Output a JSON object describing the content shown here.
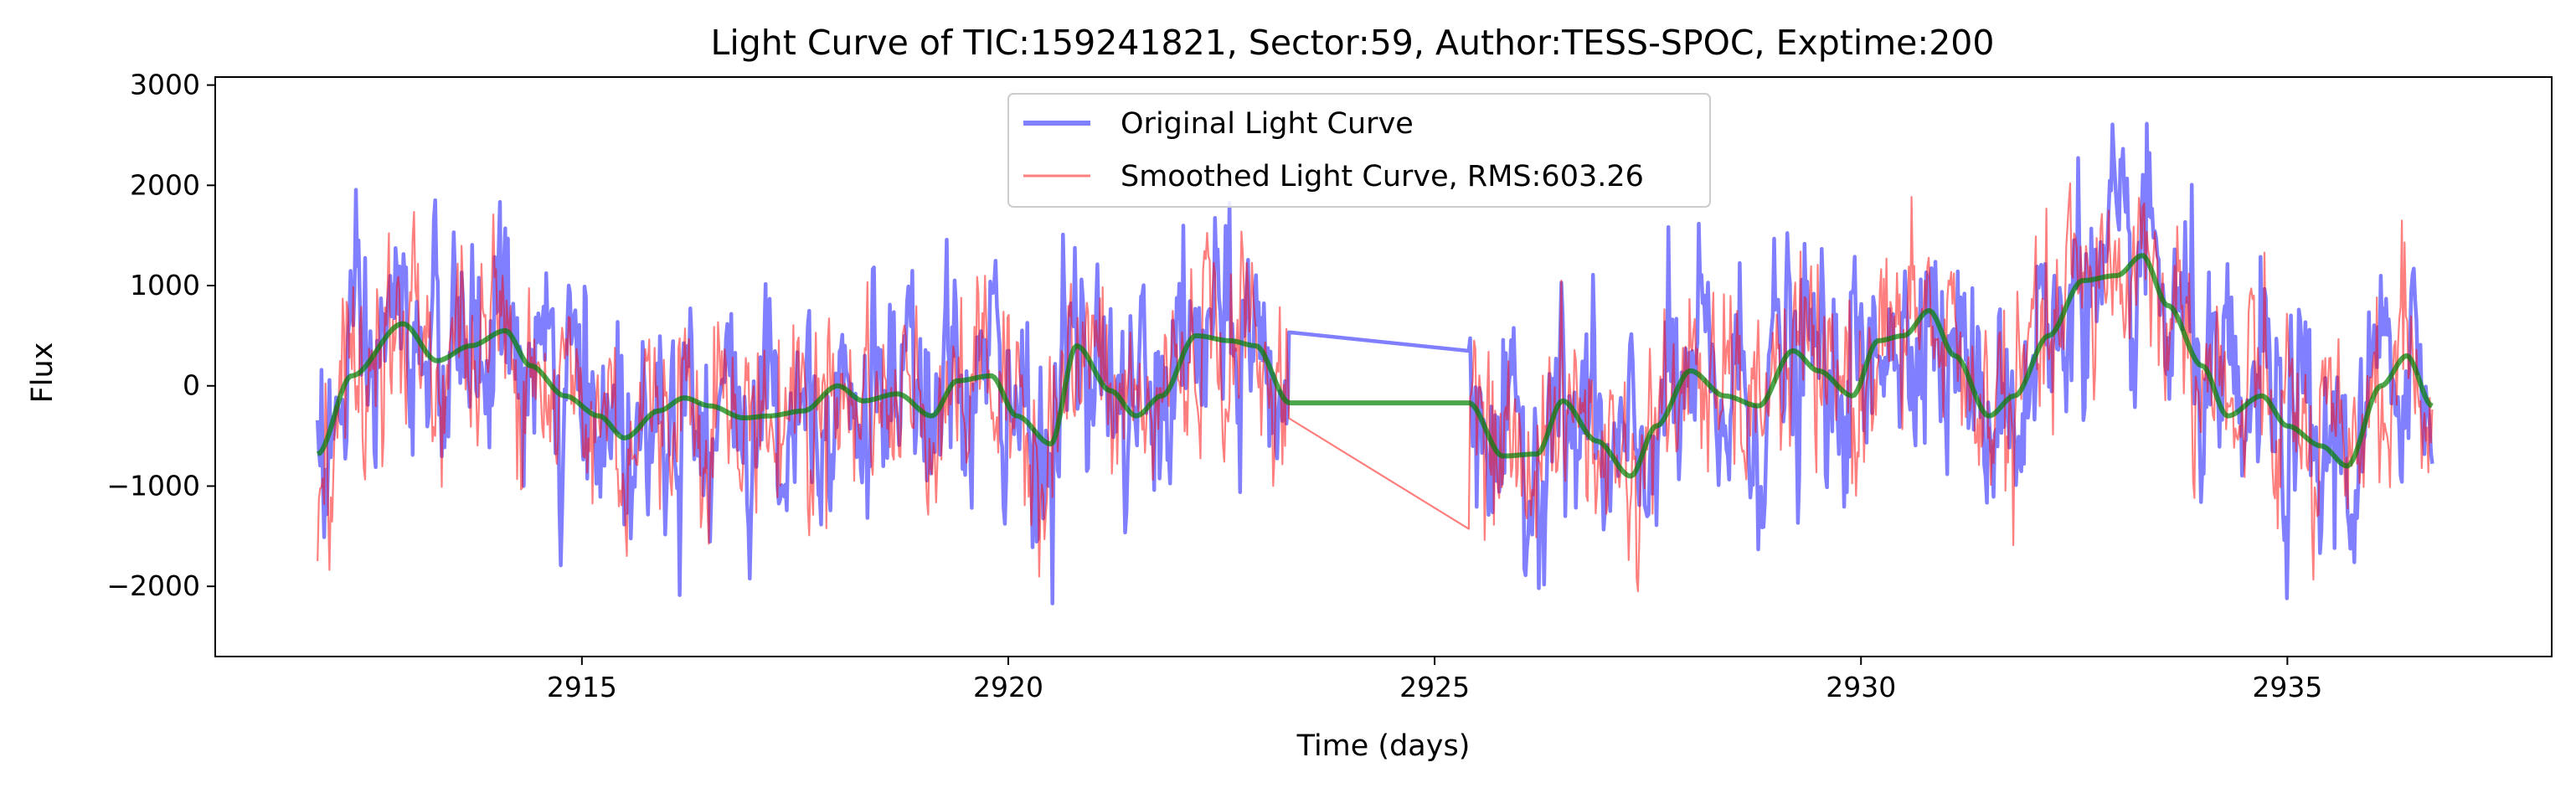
{
  "chart_data": {
    "type": "line",
    "title": "Light Curve of TIC:159241821, Sector:59, Author:TESS-SPOC, Exptime:200",
    "xlabel": "Time (days)",
    "ylabel": "Flux",
    "xlim": [
      2910.7,
      2938.1
    ],
    "ylim": [
      -2700,
      3080
    ],
    "xticks": [
      2915,
      2920,
      2925,
      2930,
      2935
    ],
    "yticks": [
      -2000,
      -1000,
      0,
      1000,
      2000,
      3000
    ],
    "ytick_labels": [
      "−2000",
      "−1000",
      "0",
      "1000",
      "2000",
      "3000"
    ],
    "grid": false,
    "legend_position": "top-center",
    "data_gap": [
      23.3,
      25.4
    ],
    "series": [
      {
        "name": "Original Light Curve",
        "color": "#0000ff",
        "opacity": 0.5,
        "x_range": [
          2911.9,
          2936.7
        ],
        "approx_min": -2450,
        "approx_max": 2800
      },
      {
        "name": "Smoothed Light Curve, RMS:603.26",
        "color": "#ff0000",
        "opacity": 0.5,
        "x_range": [
          2911.9,
          2936.7
        ],
        "approx_min": -2050,
        "approx_max": 2650
      },
      {
        "name": "",
        "color": "#008000",
        "opacity": 0.7,
        "x": [
          2911.9,
          2912.3,
          2912.9,
          2913.3,
          2913.7,
          2914.1,
          2914.4,
          2914.8,
          2915.2,
          2915.5,
          2915.9,
          2916.2,
          2916.5,
          2916.9,
          2917.2,
          2917.6,
          2918.0,
          2918.3,
          2918.7,
          2919.1,
          2919.4,
          2919.8,
          2920.1,
          2920.5,
          2920.8,
          2921.2,
          2921.5,
          2921.8,
          2922.2,
          2922.6,
          2922.9,
          2923.3,
          2925.4,
          2925.8,
          2926.2,
          2926.5,
          2926.9,
          2927.3,
          2927.6,
          2928.0,
          2928.4,
          2928.8,
          2929.2,
          2929.5,
          2929.9,
          2930.2,
          2930.5,
          2930.8,
          2931.1,
          2931.5,
          2931.8,
          2932.2,
          2932.6,
          2933.0,
          2933.3,
          2933.6,
          2934.0,
          2934.3,
          2934.7,
          2935.0,
          2935.4,
          2935.7,
          2936.1,
          2936.4,
          2936.7
        ],
        "y": [
          -680,
          100,
          620,
          250,
          400,
          550,
          200,
          -100,
          -300,
          -520,
          -250,
          -120,
          -200,
          -320,
          -300,
          -250,
          0,
          -150,
          -80,
          -300,
          50,
          100,
          -300,
          -580,
          400,
          -50,
          -300,
          -100,
          500,
          450,
          400,
          -170,
          -170,
          -700,
          -680,
          -150,
          -550,
          -900,
          -400,
          150,
          -100,
          -200,
          350,
          150,
          -100,
          450,
          500,
          750,
          300,
          -300,
          -100,
          500,
          1050,
          1100,
          1300,
          800,
          200,
          -300,
          -100,
          -400,
          -600,
          -800,
          0,
          300,
          -200
        ]
      }
    ]
  }
}
